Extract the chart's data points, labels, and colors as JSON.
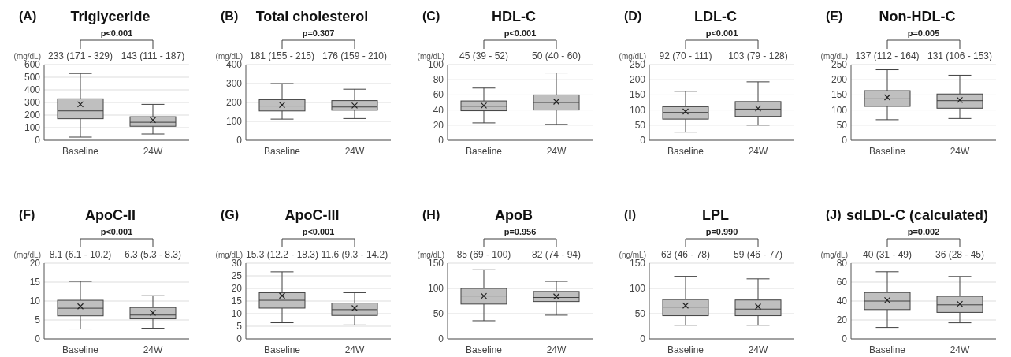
{
  "chart_data": [
    {
      "type": "box",
      "title": "Triglyceride",
      "ylabel": "(mg/dL)",
      "annotations": [
        "(A)",
        "p<0.001"
      ],
      "categories": [
        "Baseline",
        "24W"
      ],
      "color": "#bfbfbf",
      "value_labels": [
        "233 (171 - 329)",
        "143 (111 - 187)"
      ],
      "ylim": [
        0,
        600
      ],
      "yticks": [
        0,
        100,
        200,
        300,
        400,
        500,
        600
      ],
      "grid": "y",
      "boxes": [
        {
          "low": 25,
          "q1": 171,
          "median": 233,
          "q3": 329,
          "high": 530,
          "mean": 285
        },
        {
          "low": 50,
          "q1": 111,
          "median": 143,
          "q3": 187,
          "high": 285,
          "mean": 160
        }
      ]
    },
    {
      "type": "box",
      "title": "Total cholesterol",
      "ylabel": "(mg/dL)",
      "annotations": [
        "(B)",
        "p=0.307"
      ],
      "categories": [
        "Baseline",
        "24W"
      ],
      "color": "#bfbfbf",
      "value_labels": [
        "181 (155 - 215)",
        "176 (159 - 210)"
      ],
      "ylim": [
        0,
        400
      ],
      "yticks": [
        0,
        100,
        200,
        300,
        400
      ],
      "grid": "y",
      "boxes": [
        {
          "low": 112,
          "q1": 155,
          "median": 181,
          "q3": 215,
          "high": 300,
          "mean": 187
        },
        {
          "low": 115,
          "q1": 159,
          "median": 176,
          "q3": 210,
          "high": 270,
          "mean": 184
        }
      ]
    },
    {
      "type": "box",
      "title": "HDL-C",
      "ylabel": "(mg/dL)",
      "annotations": [
        "(C)",
        "p<0.001"
      ],
      "categories": [
        "Baseline",
        "24W"
      ],
      "color": "#bfbfbf",
      "value_labels": [
        "45 (39 - 52)",
        "50 (40 - 60)"
      ],
      "ylim": [
        0,
        100
      ],
      "yticks": [
        0,
        20,
        40,
        60,
        80,
        100
      ],
      "grid": "y",
      "boxes": [
        {
          "low": 23,
          "q1": 39,
          "median": 45,
          "q3": 52,
          "high": 69,
          "mean": 46
        },
        {
          "low": 21,
          "q1": 40,
          "median": 50,
          "q3": 60,
          "high": 89,
          "mean": 51
        }
      ]
    },
    {
      "type": "box",
      "title": "LDL-C",
      "ylabel": "(mg/dL)",
      "annotations": [
        "(D)",
        "p<0.001"
      ],
      "categories": [
        "Baseline",
        "24W"
      ],
      "color": "#bfbfbf",
      "value_labels": [
        "92 (70 - 111)",
        "103 (79 - 128)"
      ],
      "ylim": [
        0,
        250
      ],
      "yticks": [
        0,
        50,
        100,
        150,
        200,
        250
      ],
      "grid": "y",
      "boxes": [
        {
          "low": 27,
          "q1": 70,
          "median": 92,
          "q3": 111,
          "high": 162,
          "mean": 95
        },
        {
          "low": 50,
          "q1": 79,
          "median": 103,
          "q3": 128,
          "high": 193,
          "mean": 105
        }
      ]
    },
    {
      "type": "box",
      "title": "Non-HDL-C",
      "ylabel": "(mg/dL)",
      "annotations": [
        "(E)",
        "p=0.005"
      ],
      "categories": [
        "Baseline",
        "24W"
      ],
      "color": "#bfbfbf",
      "value_labels": [
        "137 (112 - 164)",
        "131 (106 - 153)"
      ],
      "ylim": [
        0,
        250
      ],
      "yticks": [
        0,
        50,
        100,
        150,
        200,
        250
      ],
      "grid": "y",
      "boxes": [
        {
          "low": 68,
          "q1": 112,
          "median": 137,
          "q3": 164,
          "high": 233,
          "mean": 142
        },
        {
          "low": 72,
          "q1": 106,
          "median": 131,
          "q3": 153,
          "high": 215,
          "mean": 133
        }
      ]
    },
    {
      "type": "box",
      "title": "ApoC-II",
      "ylabel": "(mg/dL)",
      "annotations": [
        "(F)",
        "p<0.001"
      ],
      "categories": [
        "Baseline",
        "24W"
      ],
      "color": "#bfbfbf",
      "value_labels": [
        "8.1 (6.1 - 10.2)",
        "6.3 (5.3 - 8.3)"
      ],
      "ylim": [
        0,
        20
      ],
      "yticks": [
        0,
        5,
        10,
        15,
        20
      ],
      "grid": "y",
      "boxes": [
        {
          "low": 2.6,
          "q1": 6.1,
          "median": 8.1,
          "q3": 10.2,
          "high": 15.2,
          "mean": 8.6
        },
        {
          "low": 2.8,
          "q1": 5.3,
          "median": 6.3,
          "q3": 8.3,
          "high": 11.4,
          "mean": 6.9
        }
      ]
    },
    {
      "type": "box",
      "title": "ApoC-III",
      "ylabel": "(mg/dL)",
      "annotations": [
        "(G)",
        "p<0.001"
      ],
      "categories": [
        "Baseline",
        "24W"
      ],
      "color": "#bfbfbf",
      "value_labels": [
        "15.3 (12.2 - 18.3)",
        "11.6 (9.3 - 14.2)"
      ],
      "ylim": [
        0,
        30
      ],
      "yticks": [
        0,
        5,
        10,
        15,
        20,
        25,
        30
      ],
      "grid": "y",
      "boxes": [
        {
          "low": 6.4,
          "q1": 12.2,
          "median": 15.3,
          "q3": 18.3,
          "high": 26.6,
          "mean": 17.1
        },
        {
          "low": 5.5,
          "q1": 9.3,
          "median": 11.6,
          "q3": 14.2,
          "high": 18.3,
          "mean": 12.2
        }
      ]
    },
    {
      "type": "box",
      "title": "ApoB",
      "ylabel": "(mg/dL)",
      "annotations": [
        "(H)",
        "p=0.956"
      ],
      "categories": [
        "Baseline",
        "24W"
      ],
      "color": "#bfbfbf",
      "value_labels": [
        "85 (69 - 100)",
        "82 (74 - 94)"
      ],
      "ylim": [
        0,
        150
      ],
      "yticks": [
        0,
        50,
        100,
        150
      ],
      "grid": "y",
      "boxes": [
        {
          "low": 36,
          "q1": 69,
          "median": 85,
          "q3": 100,
          "high": 137,
          "mean": 85
        },
        {
          "low": 47,
          "q1": 74,
          "median": 82,
          "q3": 94,
          "high": 114,
          "mean": 84
        }
      ]
    },
    {
      "type": "box",
      "title": "LPL",
      "ylabel": "(ng/mL)",
      "annotations": [
        "(I)",
        "p=0.990"
      ],
      "categories": [
        "Baseline",
        "24W"
      ],
      "color": "#bfbfbf",
      "value_labels": [
        "63 (46 - 78)",
        "59 (46 - 77)"
      ],
      "ylim": [
        0,
        150
      ],
      "yticks": [
        0,
        50,
        100,
        150
      ],
      "grid": "y",
      "boxes": [
        {
          "low": 27,
          "q1": 46,
          "median": 63,
          "q3": 78,
          "high": 124,
          "mean": 66
        },
        {
          "low": 27,
          "q1": 46,
          "median": 59,
          "q3": 77,
          "high": 119,
          "mean": 64
        }
      ]
    },
    {
      "type": "box",
      "title": "sdLDL-C (calculated)",
      "ylabel": "(mg/dL)",
      "annotations": [
        "(J)",
        "p=0.002"
      ],
      "categories": [
        "Baseline",
        "24W"
      ],
      "color": "#bfbfbf",
      "value_labels": [
        "40 (31 - 49)",
        "36 (28 - 45)"
      ],
      "ylim": [
        0,
        80
      ],
      "yticks": [
        0,
        20,
        40,
        60,
        80
      ],
      "grid": "y",
      "boxes": [
        {
          "low": 12,
          "q1": 31,
          "median": 40,
          "q3": 49,
          "high": 71,
          "mean": 41
        },
        {
          "low": 17,
          "q1": 28,
          "median": 36,
          "q3": 45,
          "high": 66,
          "mean": 37
        }
      ]
    }
  ]
}
